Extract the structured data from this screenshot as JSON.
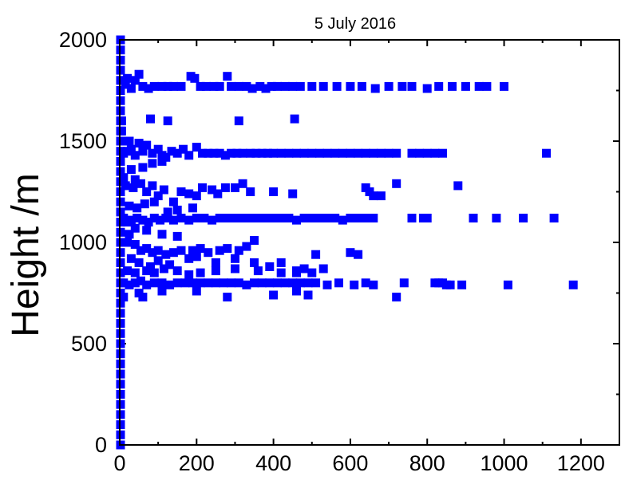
{
  "chart_data": {
    "type": "scatter",
    "title": "5 July 2016",
    "xlabel": "",
    "ylabel": "Height /m",
    "xlim": [
      0,
      1300
    ],
    "ylim": [
      0,
      2000
    ],
    "x_ticks": [
      "0",
      "200",
      "400",
      "600",
      "800",
      "1000",
      "1200"
    ],
    "y_ticks": [
      "0",
      "500",
      "1000",
      "1500",
      "2000"
    ],
    "grid": false,
    "marker_color": "#0000ff",
    "marker": "square",
    "series": [
      {
        "points": [
          [
            2,
            0
          ],
          [
            2,
            50
          ],
          [
            2,
            100
          ],
          [
            2,
            150
          ],
          [
            2,
            200
          ],
          [
            2,
            250
          ],
          [
            2,
            300
          ],
          [
            2,
            350
          ],
          [
            2,
            400
          ],
          [
            2,
            450
          ],
          [
            2,
            500
          ],
          [
            2,
            550
          ],
          [
            2,
            600
          ],
          [
            2,
            650
          ],
          [
            2,
            700
          ],
          [
            2,
            750
          ],
          [
            2,
            800
          ],
          [
            2,
            850
          ],
          [
            2,
            900
          ],
          [
            2,
            950
          ],
          [
            2,
            1000
          ],
          [
            2,
            1050
          ],
          [
            2,
            1100
          ],
          [
            2,
            1150
          ],
          [
            2,
            1200
          ],
          [
            2,
            1250
          ],
          [
            2,
            1300
          ],
          [
            2,
            1350
          ],
          [
            2,
            1400
          ],
          [
            2,
            1450
          ],
          [
            2,
            1500
          ],
          [
            2,
            1550
          ],
          [
            2,
            1600
          ],
          [
            2,
            1650
          ],
          [
            2,
            1700
          ],
          [
            2,
            1750
          ],
          [
            2,
            1800
          ],
          [
            2,
            1850
          ],
          [
            2,
            1900
          ],
          [
            2,
            1950
          ],
          [
            2,
            2000
          ],
          [
            15,
            1780
          ],
          [
            20,
            1810
          ],
          [
            30,
            1760
          ],
          [
            40,
            1800
          ],
          [
            50,
            1830
          ],
          [
            60,
            1770
          ],
          [
            75,
            1760
          ],
          [
            90,
            1770
          ],
          [
            110,
            1770
          ],
          [
            125,
            1770
          ],
          [
            140,
            1770
          ],
          [
            160,
            1770
          ],
          [
            185,
            1820
          ],
          [
            195,
            1810
          ],
          [
            210,
            1770
          ],
          [
            225,
            1770
          ],
          [
            245,
            1770
          ],
          [
            260,
            1770
          ],
          [
            280,
            1820
          ],
          [
            290,
            1770
          ],
          [
            310,
            1770
          ],
          [
            330,
            1770
          ],
          [
            345,
            1760
          ],
          [
            365,
            1770
          ],
          [
            380,
            1760
          ],
          [
            395,
            1770
          ],
          [
            410,
            1770
          ],
          [
            430,
            1770
          ],
          [
            450,
            1770
          ],
          [
            470,
            1770
          ],
          [
            500,
            1770
          ],
          [
            530,
            1770
          ],
          [
            565,
            1770
          ],
          [
            600,
            1770
          ],
          [
            630,
            1770
          ],
          [
            665,
            1760
          ],
          [
            700,
            1770
          ],
          [
            735,
            1770
          ],
          [
            760,
            1770
          ],
          [
            800,
            1760
          ],
          [
            830,
            1770
          ],
          [
            865,
            1770
          ],
          [
            900,
            1770
          ],
          [
            935,
            1770
          ],
          [
            955,
            1770
          ],
          [
            1000,
            1770
          ],
          [
            80,
            1610
          ],
          [
            125,
            1600
          ],
          [
            310,
            1600
          ],
          [
            455,
            1610
          ],
          [
            5,
            1600
          ],
          [
            5,
            1550
          ],
          [
            10,
            1440
          ],
          [
            20,
            1450
          ],
          [
            25,
            1500
          ],
          [
            30,
            1460
          ],
          [
            40,
            1430
          ],
          [
            50,
            1490
          ],
          [
            60,
            1450
          ],
          [
            70,
            1480
          ],
          [
            85,
            1440
          ],
          [
            100,
            1460
          ],
          [
            110,
            1430
          ],
          [
            120,
            1420
          ],
          [
            135,
            1450
          ],
          [
            150,
            1440
          ],
          [
            165,
            1460
          ],
          [
            180,
            1430
          ],
          [
            200,
            1470
          ],
          [
            215,
            1440
          ],
          [
            230,
            1440
          ],
          [
            245,
            1440
          ],
          [
            260,
            1440
          ],
          [
            275,
            1430
          ],
          [
            290,
            1440
          ],
          [
            305,
            1440
          ],
          [
            320,
            1440
          ],
          [
            340,
            1440
          ],
          [
            355,
            1440
          ],
          [
            370,
            1440
          ],
          [
            385,
            1440
          ],
          [
            400,
            1440
          ],
          [
            420,
            1440
          ],
          [
            440,
            1440
          ],
          [
            460,
            1440
          ],
          [
            480,
            1440
          ],
          [
            500,
            1440
          ],
          [
            520,
            1440
          ],
          [
            540,
            1440
          ],
          [
            560,
            1440
          ],
          [
            580,
            1440
          ],
          [
            600,
            1440
          ],
          [
            620,
            1440
          ],
          [
            640,
            1440
          ],
          [
            660,
            1440
          ],
          [
            680,
            1440
          ],
          [
            700,
            1440
          ],
          [
            720,
            1440
          ],
          [
            760,
            1440
          ],
          [
            780,
            1440
          ],
          [
            800,
            1440
          ],
          [
            820,
            1440
          ],
          [
            840,
            1440
          ],
          [
            1110,
            1440
          ],
          [
            110,
            1400
          ],
          [
            85,
            1390
          ],
          [
            60,
            1370
          ],
          [
            30,
            1360
          ],
          [
            40,
            1310
          ],
          [
            10,
            1320
          ],
          [
            15,
            1280
          ],
          [
            35,
            1270
          ],
          [
            55,
            1290
          ],
          [
            70,
            1250
          ],
          [
            85,
            1280
          ],
          [
            100,
            1230
          ],
          [
            115,
            1260
          ],
          [
            140,
            1200
          ],
          [
            160,
            1250
          ],
          [
            180,
            1240
          ],
          [
            200,
            1230
          ],
          [
            215,
            1270
          ],
          [
            240,
            1260
          ],
          [
            255,
            1240
          ],
          [
            275,
            1270
          ],
          [
            300,
            1270
          ],
          [
            320,
            1290
          ],
          [
            340,
            1250
          ],
          [
            400,
            1250
          ],
          [
            450,
            1240
          ],
          [
            640,
            1270
          ],
          [
            650,
            1250
          ],
          [
            660,
            1230
          ],
          [
            680,
            1230
          ],
          [
            720,
            1290
          ],
          [
            880,
            1280
          ],
          [
            25,
            1180
          ],
          [
            45,
            1170
          ],
          [
            65,
            1190
          ],
          [
            90,
            1200
          ],
          [
            125,
            1150
          ],
          [
            150,
            1160
          ],
          [
            190,
            1170
          ],
          [
            10,
            1120
          ],
          [
            20,
            1100
          ],
          [
            30,
            1110
          ],
          [
            45,
            1120
          ],
          [
            60,
            1110
          ],
          [
            75,
            1100
          ],
          [
            90,
            1120
          ],
          [
            105,
            1110
          ],
          [
            120,
            1120
          ],
          [
            140,
            1110
          ],
          [
            160,
            1120
          ],
          [
            180,
            1110
          ],
          [
            200,
            1120
          ],
          [
            220,
            1120
          ],
          [
            240,
            1110
          ],
          [
            260,
            1120
          ],
          [
            280,
            1120
          ],
          [
            300,
            1120
          ],
          [
            320,
            1120
          ],
          [
            340,
            1120
          ],
          [
            360,
            1120
          ],
          [
            380,
            1120
          ],
          [
            400,
            1120
          ],
          [
            420,
            1120
          ],
          [
            440,
            1120
          ],
          [
            460,
            1110
          ],
          [
            480,
            1120
          ],
          [
            500,
            1120
          ],
          [
            520,
            1120
          ],
          [
            540,
            1120
          ],
          [
            560,
            1120
          ],
          [
            580,
            1110
          ],
          [
            600,
            1120
          ],
          [
            620,
            1120
          ],
          [
            640,
            1120
          ],
          [
            660,
            1120
          ],
          [
            760,
            1120
          ],
          [
            790,
            1120
          ],
          [
            800,
            1120
          ],
          [
            920,
            1120
          ],
          [
            980,
            1120
          ],
          [
            1050,
            1120
          ],
          [
            1130,
            1120
          ],
          [
            40,
            1070
          ],
          [
            70,
            1060
          ],
          [
            110,
            1040
          ],
          [
            150,
            1030
          ],
          [
            25,
            1040
          ],
          [
            20,
            1000
          ],
          [
            40,
            990
          ],
          [
            55,
            960
          ],
          [
            70,
            970
          ],
          [
            85,
            950
          ],
          [
            100,
            960
          ],
          [
            120,
            940
          ],
          [
            140,
            950
          ],
          [
            160,
            960
          ],
          [
            190,
            960
          ],
          [
            210,
            970
          ],
          [
            230,
            950
          ],
          [
            260,
            960
          ],
          [
            280,
            970
          ],
          [
            310,
            960
          ],
          [
            330,
            980
          ],
          [
            350,
            1010
          ],
          [
            30,
            920
          ],
          [
            50,
            900
          ],
          [
            80,
            880
          ],
          [
            100,
            910
          ],
          [
            130,
            890
          ],
          [
            180,
            920
          ],
          [
            200,
            930
          ],
          [
            250,
            900
          ],
          [
            300,
            920
          ],
          [
            350,
            900
          ],
          [
            390,
            880
          ],
          [
            420,
            900
          ],
          [
            460,
            860
          ],
          [
            480,
            870
          ],
          [
            510,
            940
          ],
          [
            600,
            950
          ],
          [
            620,
            940
          ],
          [
            20,
            860
          ],
          [
            40,
            850
          ],
          [
            70,
            860
          ],
          [
            90,
            850
          ],
          [
            115,
            870
          ],
          [
            150,
            860
          ],
          [
            180,
            840
          ],
          [
            210,
            850
          ],
          [
            250,
            860
          ],
          [
            300,
            870
          ],
          [
            360,
            860
          ],
          [
            420,
            850
          ],
          [
            460,
            850
          ],
          [
            500,
            850
          ],
          [
            530,
            870
          ],
          [
            10,
            800
          ],
          [
            25,
            790
          ],
          [
            40,
            800
          ],
          [
            55,
            810
          ],
          [
            70,
            790
          ],
          [
            90,
            800
          ],
          [
            110,
            800
          ],
          [
            130,
            790
          ],
          [
            150,
            800
          ],
          [
            170,
            800
          ],
          [
            190,
            800
          ],
          [
            210,
            800
          ],
          [
            230,
            800
          ],
          [
            250,
            800
          ],
          [
            270,
            800
          ],
          [
            290,
            800
          ],
          [
            310,
            800
          ],
          [
            330,
            790
          ],
          [
            350,
            800
          ],
          [
            370,
            800
          ],
          [
            390,
            800
          ],
          [
            410,
            800
          ],
          [
            430,
            800
          ],
          [
            450,
            800
          ],
          [
            470,
            800
          ],
          [
            490,
            800
          ],
          [
            510,
            800
          ],
          [
            540,
            790
          ],
          [
            570,
            800
          ],
          [
            610,
            790
          ],
          [
            640,
            800
          ],
          [
            660,
            790
          ],
          [
            740,
            800
          ],
          [
            820,
            800
          ],
          [
            830,
            800
          ],
          [
            840,
            800
          ],
          [
            850,
            790
          ],
          [
            860,
            790
          ],
          [
            890,
            790
          ],
          [
            1010,
            790
          ],
          [
            1180,
            790
          ],
          [
            50,
            750
          ],
          [
            110,
            760
          ],
          [
            200,
            760
          ],
          [
            280,
            730
          ],
          [
            400,
            740
          ],
          [
            460,
            760
          ],
          [
            490,
            740
          ],
          [
            720,
            730
          ],
          [
            60,
            730
          ],
          [
            10,
            730
          ]
        ]
      }
    ]
  }
}
